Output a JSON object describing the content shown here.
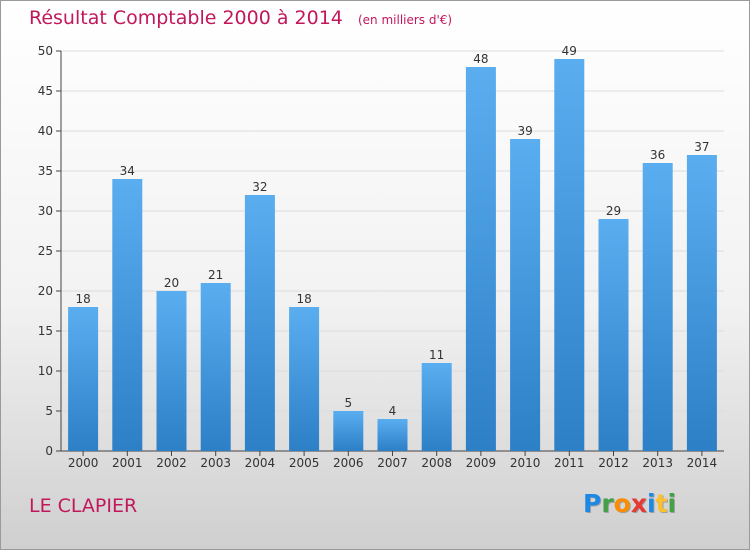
{
  "chart_data": {
    "type": "bar",
    "title": "Résultat Comptable 2000 à 2014",
    "unit_label": "(en milliers d'€)",
    "categories": [
      "2000",
      "2001",
      "2002",
      "2003",
      "2004",
      "2005",
      "2006",
      "2007",
      "2008",
      "2009",
      "2010",
      "2011",
      "2012",
      "2013",
      "2014"
    ],
    "values": [
      18,
      34,
      20,
      21,
      32,
      18,
      5,
      4,
      11,
      48,
      39,
      49,
      29,
      36,
      37
    ],
    "ylim": [
      0,
      50
    ],
    "yticks": [
      0,
      5,
      10,
      15,
      20,
      25,
      30,
      35,
      40,
      45,
      50
    ],
    "grid": true,
    "colors": {
      "bar_top": "#5aaef0",
      "bar_bottom": "#2d7fc6",
      "title": "#c2185b"
    }
  },
  "commune": "LE CLAPIER",
  "logo": {
    "letters": [
      {
        "ch": "P",
        "color": "#1e88e5"
      },
      {
        "ch": "r",
        "color": "#43a047"
      },
      {
        "ch": "o",
        "color": "#fb8c00"
      },
      {
        "ch": "x",
        "color": "#e53935"
      },
      {
        "ch": "i",
        "color": "#1e88e5"
      },
      {
        "ch": "t",
        "color": "#fbc02d"
      },
      {
        "ch": "i",
        "color": "#43a047"
      }
    ]
  }
}
